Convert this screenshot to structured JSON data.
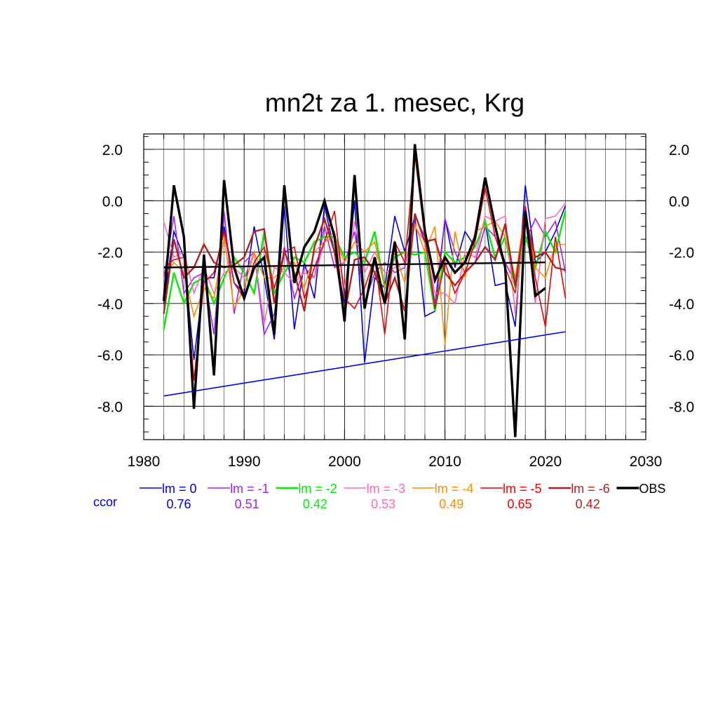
{
  "chart_data": {
    "type": "line",
    "title": "mn2t za 1. mesec, Krg",
    "xlabel": "",
    "ylabel": "",
    "xlim": [
      1980,
      2030
    ],
    "ylim": [
      -9.3,
      2.6
    ],
    "x_ticks": [
      1980,
      1990,
      2000,
      2010,
      2020,
      2030
    ],
    "x_tick_labels": [
      "1980",
      "1990",
      "2000",
      "2010",
      "2020",
      "2030"
    ],
    "y_ticks": [
      2,
      0,
      -2,
      -4,
      -6,
      -8
    ],
    "y_tick_labels": [
      "2.0",
      "0.0",
      "-2.0",
      "-4.0",
      "-6.0",
      "-8.0"
    ],
    "grid": true,
    "legend_position": "bottom",
    "ccor_label": "ccor",
    "x": [
      1982,
      1983,
      1984,
      1985,
      1986,
      1987,
      1988,
      1989,
      1990,
      1991,
      1992,
      1993,
      1994,
      1995,
      1996,
      1997,
      1998,
      1999,
      2000,
      2001,
      2002,
      2003,
      2004,
      2005,
      2006,
      2007,
      2008,
      2009,
      2010,
      2011,
      2012,
      2013,
      2014,
      2015,
      2016,
      2017,
      2018,
      2019,
      2020,
      2021,
      2022
    ],
    "series": [
      {
        "name": "lm = 0",
        "ccor": "0.76",
        "color": "#0000dd",
        "width": 1.6,
        "values": [
          -4.0,
          -1.2,
          -2.2,
          -6.2,
          -3.0,
          -3.0,
          -1.0,
          -3.2,
          -3.6,
          -1.0,
          -3.0,
          -5.4,
          -0.2,
          -5.0,
          -2.4,
          -3.8,
          -0.2,
          -2.0,
          -4.0,
          0.0,
          -6.3,
          -3.0,
          -3.4,
          -0.6,
          -2.0,
          -0.6,
          -4.5,
          -4.3,
          -0.7,
          -2.6,
          -1.2,
          -1.8,
          -0.8,
          -3.3,
          -3.2,
          -4.9,
          0.6,
          -2.4,
          -2.0,
          -1.2,
          -0.2
        ]
      },
      {
        "name": "lm = -1",
        "ccor": "0.51",
        "color": "#a020f0",
        "width": 1.6,
        "values": [
          -3.0,
          -0.6,
          -3.6,
          -3.0,
          -2.8,
          -5.2,
          -0.4,
          -4.4,
          -2.4,
          -2.0,
          -5.2,
          -4.4,
          -1.8,
          -3.8,
          -2.6,
          -3.0,
          -1.0,
          -2.6,
          -2.4,
          -1.2,
          -4.0,
          -2.8,
          -2.4,
          -2.8,
          -2.6,
          -0.6,
          -1.4,
          -4.0,
          -0.7,
          -2.0,
          -2.8,
          -2.4,
          -1.0,
          -1.4,
          -2.4,
          -3.2,
          -1.6,
          -0.7,
          -1.4,
          -0.8,
          -2.8
        ]
      },
      {
        "name": "lm = -2",
        "ccor": "0.42",
        "color": "#00ee00",
        "width": 2.4,
        "values": [
          -5.0,
          -2.8,
          -4.0,
          -3.2,
          -3.0,
          -4.0,
          -3.0,
          -2.2,
          -2.8,
          -3.6,
          -1.2,
          -3.6,
          -2.8,
          -2.2,
          -2.4,
          -1.6,
          -1.4,
          -1.4,
          -2.2,
          -2.0,
          -2.4,
          -1.2,
          -3.4,
          -2.2,
          -2.0,
          -2.1,
          -2.0,
          -4.3,
          -2.0,
          -2.4,
          -2.2,
          -1.8,
          -0.8,
          -2.2,
          -1.4,
          -3.4,
          -1.4,
          -2.6,
          -1.2,
          -2.0,
          -0.4
        ]
      },
      {
        "name": "lm = -3",
        "ccor": "0.53",
        "color": "#ff69b4",
        "width": 1.6,
        "values": [
          -0.8,
          -2.2,
          -2.0,
          -3.6,
          -2.6,
          -3.6,
          -2.8,
          -2.6,
          -3.0,
          -2.0,
          -4.8,
          -2.6,
          -2.8,
          -3.2,
          -2.8,
          -3.0,
          -1.6,
          -1.2,
          -3.4,
          -0.8,
          -2.8,
          -2.0,
          -2.8,
          -2.6,
          -2.4,
          -1.0,
          -1.6,
          -3.6,
          -3.6,
          -4.0,
          -2.0,
          -2.2,
          -0.6,
          -0.8,
          -0.6,
          -4.4,
          -0.4,
          -4.0,
          -0.7,
          -0.6,
          -0.1
        ]
      },
      {
        "name": "lm = -4",
        "ccor": "0.49",
        "color": "#ff8c00",
        "width": 1.6,
        "values": [
          -3.0,
          -2.4,
          -2.8,
          -4.5,
          -3.4,
          -3.8,
          -1.4,
          -4.2,
          -3.4,
          -2.0,
          -3.0,
          -3.0,
          -2.6,
          -2.4,
          -3.4,
          -2.0,
          -1.6,
          -1.4,
          -2.4,
          -1.6,
          -2.0,
          -1.6,
          -3.4,
          -2.0,
          -3.2,
          -0.9,
          -2.0,
          -1.0,
          -5.6,
          -1.2,
          -3.0,
          -1.2,
          -1.0,
          -0.8,
          -1.4,
          -3.0,
          -0.4,
          -2.6,
          -3.0,
          -1.7,
          -1.7
        ]
      },
      {
        "name": "lm = -5",
        "ccor": "0.65",
        "color": "#ee0000",
        "width": 1.6,
        "values": [
          -2.6,
          -2.3,
          -2.2,
          -7.0,
          -3.2,
          -2.8,
          -1.2,
          -3.2,
          -3.8,
          -2.4,
          -1.8,
          -3.4,
          -2.0,
          -1.8,
          -3.8,
          -2.6,
          -1.6,
          -0.4,
          -3.8,
          -4.2,
          -3.4,
          -2.2,
          -5.2,
          -1.6,
          -2.4,
          1.8,
          -1.4,
          -4.2,
          -2.4,
          -3.6,
          -2.8,
          -1.6,
          0.5,
          -1.4,
          -2.6,
          -3.6,
          -0.2,
          -3.0,
          -4.9,
          -1.4,
          -3.8
        ]
      },
      {
        "name": "lm = -6",
        "ccor": "0.42",
        "color": "#b22222",
        "width": 2.4,
        "values": [
          -4.4,
          -1.5,
          -3.0,
          -2.6,
          -1.7,
          -2.4,
          -2.6,
          -2.5,
          -2.2,
          -1.2,
          -1.1,
          -4.0,
          -2.0,
          -2.8,
          -4.3,
          -1.8,
          -0.7,
          -2.0,
          -4.4,
          -2.3,
          -2.2,
          -2.8,
          -4.0,
          -3.0,
          -4.3,
          -0.5,
          -1.6,
          -1.5,
          -2.8,
          -3.3,
          -2.8,
          -2.4,
          -1.8,
          -2.3,
          -0.9,
          -3.3,
          -0.6,
          -2.2,
          -2.0,
          -2.6,
          -2.7
        ]
      },
      {
        "name": "OBS",
        "ccor": "",
        "color": "#000000",
        "width": 3.4,
        "values": [
          -3.9,
          0.6,
          -1.4,
          -8.1,
          -2.1,
          -6.8,
          0.8,
          -2.6,
          -3.8,
          -2.6,
          -2.2,
          -5.2,
          0.6,
          -3.2,
          -1.8,
          -1.2,
          0.0,
          -1.4,
          -4.7,
          1.0,
          -4.2,
          -2.2,
          -4.0,
          -1.6,
          -5.4,
          2.2,
          -1.2,
          -3.1,
          -2.2,
          -2.8,
          -2.4,
          -1.4,
          0.9,
          -1.0,
          -2.6,
          -9.2,
          -0.4,
          -3.7,
          -3.4,
          null,
          null
        ]
      }
    ],
    "trend_lines": [
      {
        "name": "obs-trend",
        "color": "#000000",
        "width": 2.4,
        "x": [
          1982,
          2020
        ],
        "y": [
          -2.6,
          -2.4
        ]
      },
      {
        "name": "lm0-trend",
        "color": "#0000dd",
        "width": 1.6,
        "x": [
          1982,
          2022
        ],
        "y": [
          -7.6,
          -5.1
        ]
      }
    ]
  }
}
